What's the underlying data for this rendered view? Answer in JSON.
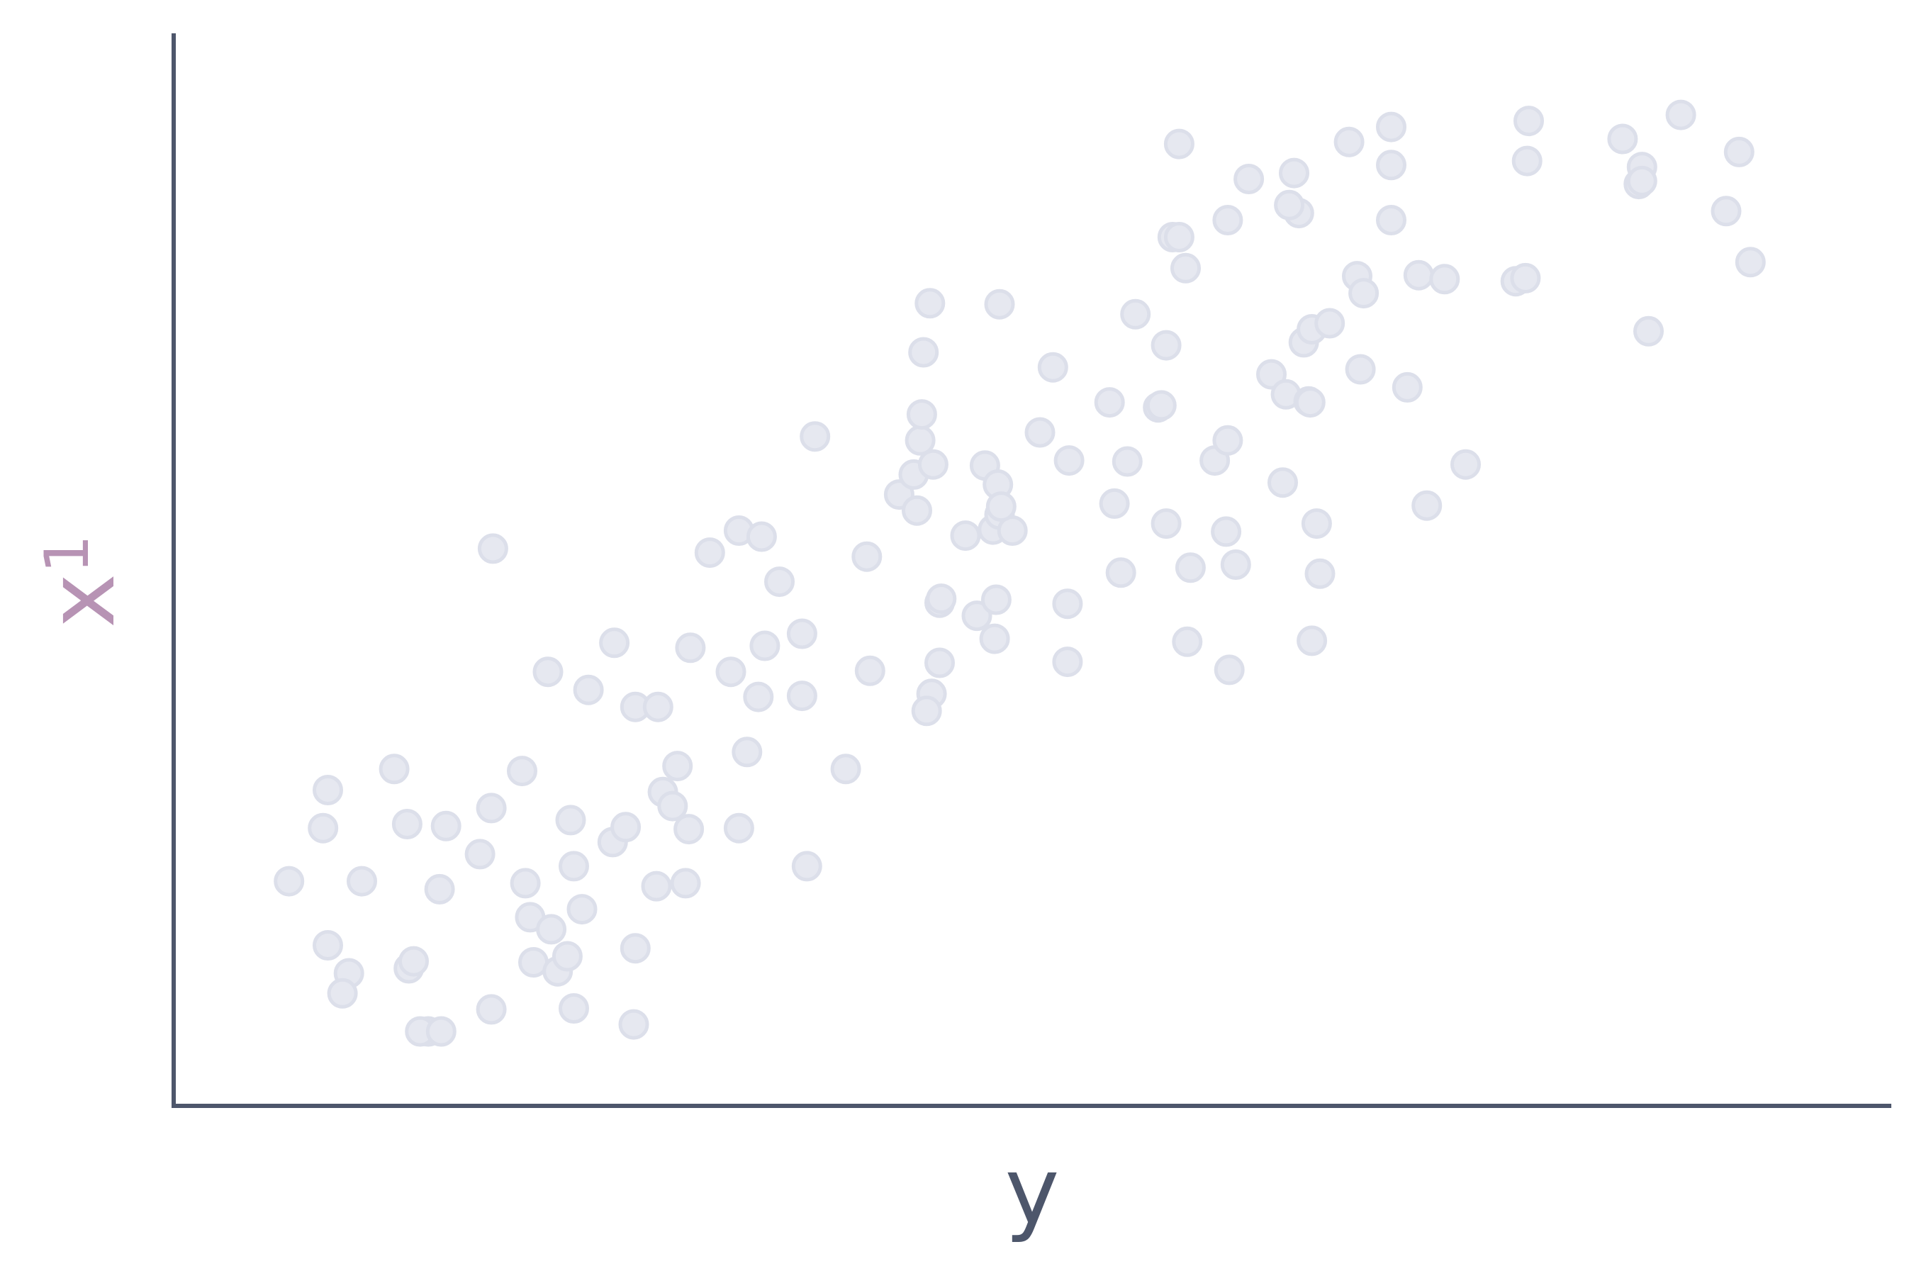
{
  "chart_data": {
    "type": "scatter",
    "xlabel": "y",
    "ylabel": {
      "base": "x",
      "subscript": "1"
    },
    "xlim": [
      0,
      100
    ],
    "ylim": [
      0,
      100
    ],
    "ticks": false,
    "grid": false,
    "colors": {
      "axis": "#4d566b",
      "xlabel": "#4d566b",
      "ylabel": "#b793b4",
      "point_fill": "#e6e8f0",
      "point_stroke": "#dcdfea"
    },
    "points": [
      [
        4.5,
        19.6
      ],
      [
        6.9,
        13.2
      ],
      [
        8.2,
        10.4
      ],
      [
        7.8,
        8.4
      ],
      [
        6.6,
        24.9
      ],
      [
        6.9,
        28.7
      ],
      [
        9.0,
        19.6
      ],
      [
        11.0,
        30.8
      ],
      [
        11.9,
        10.9
      ],
      [
        12.2,
        11.6
      ],
      [
        11.8,
        25.3
      ],
      [
        13.8,
        18.8
      ],
      [
        14.2,
        25.1
      ],
      [
        13.1,
        4.6
      ],
      [
        12.6,
        4.6
      ],
      [
        13.9,
        4.6
      ],
      [
        16.3,
        22.3
      ],
      [
        17.0,
        6.8
      ],
      [
        17.0,
        26.9
      ],
      [
        17.1,
        52.8
      ],
      [
        18.9,
        30.6
      ],
      [
        19.4,
        16.0
      ],
      [
        19.1,
        19.4
      ],
      [
        19.6,
        11.5
      ],
      [
        20.7,
        14.8
      ],
      [
        21.1,
        10.6
      ],
      [
        21.7,
        12.1
      ],
      [
        22.1,
        6.9
      ],
      [
        21.9,
        25.7
      ],
      [
        22.1,
        21.1
      ],
      [
        22.6,
        16.8
      ],
      [
        20.5,
        40.5
      ],
      [
        23.0,
        38.7
      ],
      [
        24.5,
        23.5
      ],
      [
        25.3,
        25.0
      ],
      [
        25.9,
        12.9
      ],
      [
        25.8,
        5.3
      ],
      [
        24.6,
        43.4
      ],
      [
        25.9,
        37.0
      ],
      [
        27.3,
        37.0
      ],
      [
        27.2,
        19.1
      ],
      [
        27.6,
        28.5
      ],
      [
        28.5,
        31.1
      ],
      [
        28.2,
        27.1
      ],
      [
        29.2,
        24.8
      ],
      [
        29.0,
        19.4
      ],
      [
        29.3,
        42.9
      ],
      [
        30.5,
        52.4
      ],
      [
        31.8,
        40.5
      ],
      [
        32.3,
        24.9
      ],
      [
        32.8,
        32.5
      ],
      [
        33.5,
        38.0
      ],
      [
        32.3,
        54.6
      ],
      [
        33.7,
        54.0
      ],
      [
        33.9,
        43.1
      ],
      [
        34.8,
        49.5
      ],
      [
        36.2,
        44.3
      ],
      [
        36.2,
        38.1
      ],
      [
        36.5,
        21.1
      ],
      [
        37.0,
        64.0
      ],
      [
        38.9,
        30.8
      ],
      [
        40.2,
        52.0
      ],
      [
        40.4,
        40.6
      ],
      [
        42.2,
        58.2
      ],
      [
        43.1,
        60.2
      ],
      [
        43.3,
        56.6
      ],
      [
        43.5,
        63.6
      ],
      [
        43.6,
        66.2
      ],
      [
        43.7,
        72.4
      ],
      [
        44.1,
        77.3
      ],
      [
        44.3,
        61.2
      ],
      [
        44.7,
        47.4
      ],
      [
        44.2,
        38.3
      ],
      [
        43.9,
        36.6
      ],
      [
        44.8,
        47.8
      ],
      [
        44.7,
        41.4
      ],
      [
        46.3,
        54.1
      ],
      [
        47.0,
        46.1
      ],
      [
        47.5,
        61.1
      ],
      [
        48.0,
        54.7
      ],
      [
        48.3,
        59.2
      ],
      [
        48.4,
        56.2
      ],
      [
        48.2,
        47.7
      ],
      [
        48.1,
        43.8
      ],
      [
        48.4,
        77.2
      ],
      [
        49.2,
        54.6
      ],
      [
        48.5,
        57.0
      ],
      [
        50.9,
        64.4
      ],
      [
        51.7,
        70.9
      ],
      [
        52.6,
        47.3
      ],
      [
        52.7,
        61.6
      ],
      [
        52.6,
        41.5
      ],
      [
        55.5,
        57.3
      ],
      [
        56.3,
        61.5
      ],
      [
        55.2,
        67.4
      ],
      [
        55.9,
        50.4
      ],
      [
        56.8,
        76.2
      ],
      [
        58.2,
        66.9
      ],
      [
        58.7,
        73.1
      ],
      [
        58.7,
        55.3
      ],
      [
        58.4,
        67.1
      ],
      [
        59.1,
        83.9
      ],
      [
        59.5,
        83.9
      ],
      [
        60.2,
        50.9
      ],
      [
        59.5,
        93.2
      ],
      [
        60.0,
        43.5
      ],
      [
        59.9,
        80.8
      ],
      [
        61.7,
        61.6
      ],
      [
        62.5,
        85.6
      ],
      [
        62.5,
        63.6
      ],
      [
        62.4,
        54.5
      ],
      [
        62.6,
        40.7
      ],
      [
        63.0,
        51.2
      ],
      [
        63.8,
        89.7
      ],
      [
        65.2,
        70.2
      ],
      [
        65.9,
        59.4
      ],
      [
        66.6,
        90.3
      ],
      [
        66.1,
        68.2
      ],
      [
        66.9,
        86.3
      ],
      [
        66.3,
        87.1
      ],
      [
        67.2,
        73.4
      ],
      [
        67.5,
        67.5
      ],
      [
        67.7,
        74.7
      ],
      [
        68.0,
        55.3
      ],
      [
        67.6,
        67.4
      ],
      [
        67.7,
        43.6
      ],
      [
        68.2,
        50.3
      ],
      [
        68.8,
        75.3
      ],
      [
        70.0,
        93.4
      ],
      [
        70.5,
        80.0
      ],
      [
        70.9,
        78.3
      ],
      [
        70.7,
        70.7
      ],
      [
        72.6,
        85.6
      ],
      [
        72.6,
        91.1
      ],
      [
        72.6,
        94.9
      ],
      [
        74.3,
        80.1
      ],
      [
        74.8,
        57.1
      ],
      [
        75.9,
        79.7
      ],
      [
        73.6,
        68.9
      ],
      [
        77.2,
        61.2
      ],
      [
        80.3,
        79.5
      ],
      [
        80.9,
        79.8
      ],
      [
        81.0,
        91.5
      ],
      [
        81.1,
        95.5
      ],
      [
        86.9,
        93.7
      ],
      [
        87.9,
        89.2
      ],
      [
        88.1,
        90.9
      ],
      [
        88.1,
        89.5
      ],
      [
        88.5,
        74.5
      ],
      [
        90.5,
        96.1
      ],
      [
        93.3,
        86.5
      ],
      [
        94.1,
        92.4
      ],
      [
        94.8,
        81.4
      ]
    ]
  }
}
